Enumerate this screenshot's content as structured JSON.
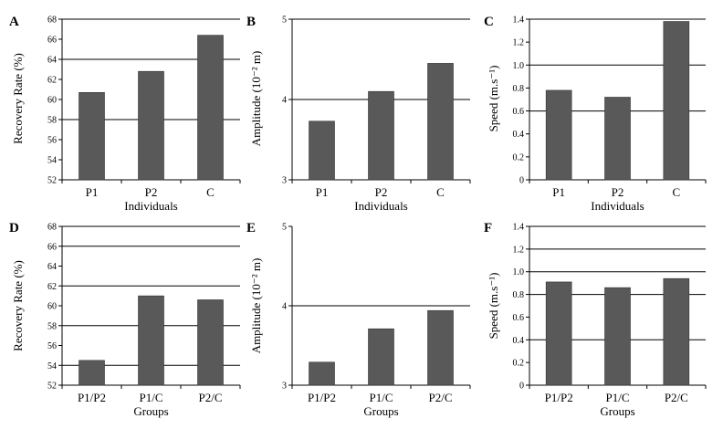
{
  "chart_data": [
    {
      "type": "bar",
      "panel": "A",
      "categories": [
        "P1",
        "P2",
        "C"
      ],
      "values": [
        60.7,
        62.8,
        66.4
      ],
      "xlabel": "Individuals",
      "ylabel": "Recovery Rate (%)",
      "ylim": [
        52,
        68
      ],
      "yticks": [
        "52",
        "54",
        "56",
        "58",
        "60",
        "62",
        "64",
        "66",
        "68"
      ],
      "gridlines": [
        52,
        58,
        64,
        68
      ],
      "bar_color": "#595959"
    },
    {
      "type": "bar",
      "panel": "B",
      "categories": [
        "P1",
        "P2",
        "C"
      ],
      "values": [
        3.73,
        4.1,
        4.45
      ],
      "xlabel": "Individuals",
      "ylabel": "Amplitude (10⁻² m)",
      "ylim": [
        3,
        5
      ],
      "yticks": [
        "3",
        "4",
        "5"
      ],
      "gridlines": [
        3,
        4,
        5
      ],
      "bar_color": "#595959"
    },
    {
      "type": "bar",
      "panel": "C",
      "categories": [
        "P1",
        "P2",
        "C"
      ],
      "values": [
        0.78,
        0.72,
        1.38
      ],
      "xlabel": "Individuals",
      "ylabel": "Speed (m.s⁻¹)",
      "ylim": [
        0,
        1.4
      ],
      "yticks": [
        "0",
        "0.2",
        "0.4",
        "0.6",
        "0.8",
        "1.0",
        "1.2",
        "1.4"
      ],
      "gridlines": [
        0,
        0.6,
        1.0,
        1.4
      ],
      "bar_color": "#595959"
    },
    {
      "type": "bar",
      "panel": "D",
      "categories": [
        "P1/P2",
        "P1/C",
        "P2/C"
      ],
      "values": [
        54.5,
        61.0,
        60.6
      ],
      "xlabel": "Groups",
      "ylabel": "Recovery Rate (%)",
      "ylim": [
        52,
        68
      ],
      "yticks": [
        "52",
        "54",
        "56",
        "58",
        "60",
        "62",
        "64",
        "66",
        "68"
      ],
      "gridlines": [
        52,
        54,
        58,
        62,
        66,
        68
      ],
      "bar_color": "#595959"
    },
    {
      "type": "bar",
      "panel": "E",
      "categories": [
        "P1/P2",
        "P1/C",
        "P2/C"
      ],
      "values": [
        3.29,
        3.71,
        3.94
      ],
      "xlabel": "Groups",
      "ylabel": "Amplitude (10⁻² m)",
      "ylim": [
        3,
        5
      ],
      "yticks": [
        "3",
        "4",
        "5"
      ],
      "gridlines": [
        3,
        4
      ],
      "bar_color": "#595959"
    },
    {
      "type": "bar",
      "panel": "F",
      "categories": [
        "P1/P2",
        "P1/C",
        "P2/C"
      ],
      "values": [
        0.91,
        0.86,
        0.94
      ],
      "xlabel": "Groups",
      "ylabel": "Speed (m.s⁻¹)",
      "ylim": [
        0,
        1.4
      ],
      "yticks": [
        "0",
        "0.2",
        "0.4",
        "0.6",
        "0.8",
        "1.0",
        "1.2",
        "1.4"
      ],
      "gridlines": [
        0,
        0.4,
        0.8,
        1.0,
        1.2,
        1.4
      ],
      "bar_color": "#595959"
    }
  ]
}
